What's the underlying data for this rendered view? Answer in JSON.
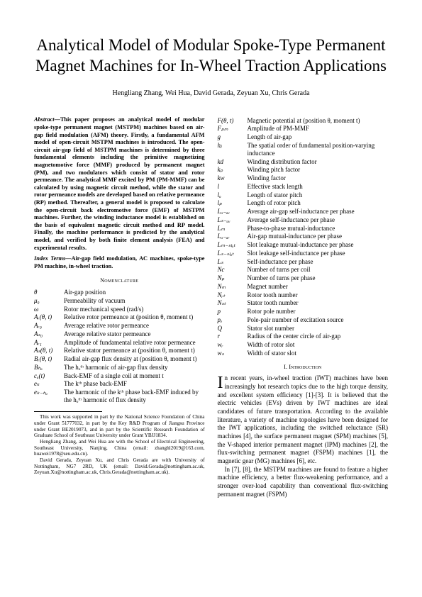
{
  "title": "Analytical Model of Modular Spoke-Type Permanent Magnet Machines for In-Wheel Traction Applications",
  "authors": "Hengliang Zhang, Wei Hua, David Gerada, Zeyuan Xu, Chris Gerada",
  "abstract_label": "Abstract—",
  "abstract": "This paper proposes an analytical model of modular spoke-type permanent magnet (MSTPM) machines based on air-gap field modulation (AFM) theory. Firstly, a fundamental AFM model of open-circuit MSTPM machines is introduced. The open-circuit air-gap field of MSTPM machines is determined by three fundamental elements including the primitive magnetizing magnetomotive force (MMF) produced by permanent magnet (PM), and two modulators which consist of stator and rotor permeance. The analytical MMF excited by PM (PM-MMF) can be calculated by using magnetic circuit method, while the stator and rotor permeance models are developed based on relative permeance (RP) method. Thereafter, a general model is proposed to calculate the open-circuit back electromotive force (EMF) of MSTPM machines. Further, the winding inductance model is established on the basis of equivalent magnetic circuit method and RP model. Finally, the machine performance is predicted by the analytical model, and verified by both finite element analysis (FEA) and experimental results.",
  "index_label": "Index Terms—",
  "index_terms": "Air-gap field modulation, AC machines, spoke-type PM machine, in-wheel traction.",
  "nomen_heading": "Nomenclature",
  "nom_left": [
    {
      "s": "θ",
      "d": "Air-gap position"
    },
    {
      "s": "μ₀",
      "d": "Permeability of vacuum"
    },
    {
      "s": "ω",
      "d": "Rotor mechanical speed (rad/s)"
    },
    {
      "s": "Aᵣ(θ, t)",
      "d": "Relative rotor permeance at (position θ, moment t)"
    },
    {
      "s": "Aᵣ₀",
      "d": "Average relative rotor permeance"
    },
    {
      "s": "Aₛ₀",
      "d": "Average relative stator permeance"
    },
    {
      "s": "Aᵣ₁",
      "d": "Amplitude of fundamental relative rotor permeance"
    },
    {
      "s": "Aₛ(θ, t)",
      "d": "Relative stator permeance at (position θ, moment t)"
    },
    {
      "s": "Bᵣ(θ, t)",
      "d": "Radial air-gap flux density at (position θ, moment t)"
    },
    {
      "s": "Bₕₒ",
      "d": "The hₒᵗʰ harmonic of air-gap flux density"
    },
    {
      "s": "cₐ(t)",
      "d": "Back-EMF of a single coil at moment t"
    },
    {
      "s": "eₖ",
      "d": "The kᵗʰ phase back-EMF"
    },
    {
      "s": "eₖ₋ₕₒ",
      "d": "The harmonic of the kᵗʰ phase back-EMF induced by the hₒᵗʰ harmonic of flux density"
    }
  ],
  "nom_right": [
    {
      "s": "F(θ, t)",
      "d": "Magnetic potential at (position θ, moment t)"
    },
    {
      "s": "Fₚₘ",
      "d": "Amplitude of PM-MMF"
    },
    {
      "s": "g",
      "d": "Length of air-gap"
    },
    {
      "s": "hⱼ",
      "d": "The spatial order of fundamental position-varying inductance"
    },
    {
      "s": "kd",
      "d": "Winding distribution factor"
    },
    {
      "s": "kₚ",
      "d": "Winding pitch factor"
    },
    {
      "s": "kw",
      "d": "Winding factor"
    },
    {
      "s": "l",
      "d": "Effective stack length"
    },
    {
      "s": "lₒ",
      "d": "Length of stator pitch"
    },
    {
      "s": "lₚ",
      "d": "Length of rotor pitch"
    },
    {
      "s": "Lₐ₋ₐᵥ",
      "d": "Average air-gap self-inductance per phase"
    },
    {
      "s": "Lₛ₋ₐᵥ",
      "d": "Average self-inductance per phase"
    },
    {
      "s": "Lₘ",
      "d": "Phase-to-phase mutual-inductance"
    },
    {
      "s": "Lₐ₋ₐᵣ",
      "d": "Air-gap mutual-inductance per phase"
    },
    {
      "s": "Lₘ₋ₛₗₒₜ",
      "d": "Slot leakage mutual-inductance per phase"
    },
    {
      "s": "Lₛ₋ₛₗₒₜ",
      "d": "Slot leakage self-inductance per phase"
    },
    {
      "s": "Lₛ",
      "d": "Self-inductance per phase"
    },
    {
      "s": "Nc",
      "d": "Number of turns per coil"
    },
    {
      "s": "Nₚ",
      "d": "Number of turns per phase"
    },
    {
      "s": "Nₘ",
      "d": "Magnet number"
    },
    {
      "s": "Nᵣₜ",
      "d": "Rotor tooth number"
    },
    {
      "s": "Nₛₜ",
      "d": "Stator tooth number"
    },
    {
      "s": "p",
      "d": "Rotor pole number"
    },
    {
      "s": "pₑ",
      "d": "Pole-pair number of excitation source"
    },
    {
      "s": "Q",
      "d": "Stator slot number"
    },
    {
      "s": "r",
      "d": "Radius of the center circle of air-gap"
    },
    {
      "s": "wᵣ",
      "d": "Width of rotor slot"
    },
    {
      "s": "wₛ",
      "d": "Width of stator slot"
    }
  ],
  "section1": "I.    Introduction",
  "intro_p1": "In recent years, in-wheel traction (IWT) machines have been increasingly hot research topics due to the high torque density, and excellent system efficiency [1]-[3]. It is believed that the electric vehicles (EVs) driven by IWT machines are ideal candidates of future transportation. According to the available literature, a variety of machine topologies have been designed for the IWT applications, including the switched reluctance (SR) machines [4], the surface permanent magnet (SPM) machines [5], the V-shaped interior permanent magnet (IPM) machines [2], the flux-switching permanent magnet (FSPM) machines [1], the magnetic gear (MG) machines [6], etc.",
  "intro_p2": "In [7], [8], the MSTPM machines are found to feature a higher machine efficiency, a better flux-weakening performance, and a stronger over-load capability than conventional flux-switching permanent magnet (FSPM)",
  "footnotes": [
    "This work was supported in part by the National Science Foundation of China under Grant 51777032, in part by the Key R&D Program of Jiangsu Province under Grant BE2019073, and in part by the Scientific Research Foundation of Graduate School of Southeast University under Grant YBJJ1834.",
    "Hengliang Zhang, and Wei Hua are with the School of Electrical Engineering, Southeast University, Nanjing, China (email: zhanghl2019@163.com, huawei1978@seu.edu.cn).",
    "David Gerada, Zeyuan Xu, and Chris Gerada are with University of Nottingham, NG7 2RD, UK (email: David.Gerada@nottingham.ac.uk, Zeyuan.Xu@nottingham.ac.uk, Chris.Gerada@nottingham.ac.uk)."
  ]
}
